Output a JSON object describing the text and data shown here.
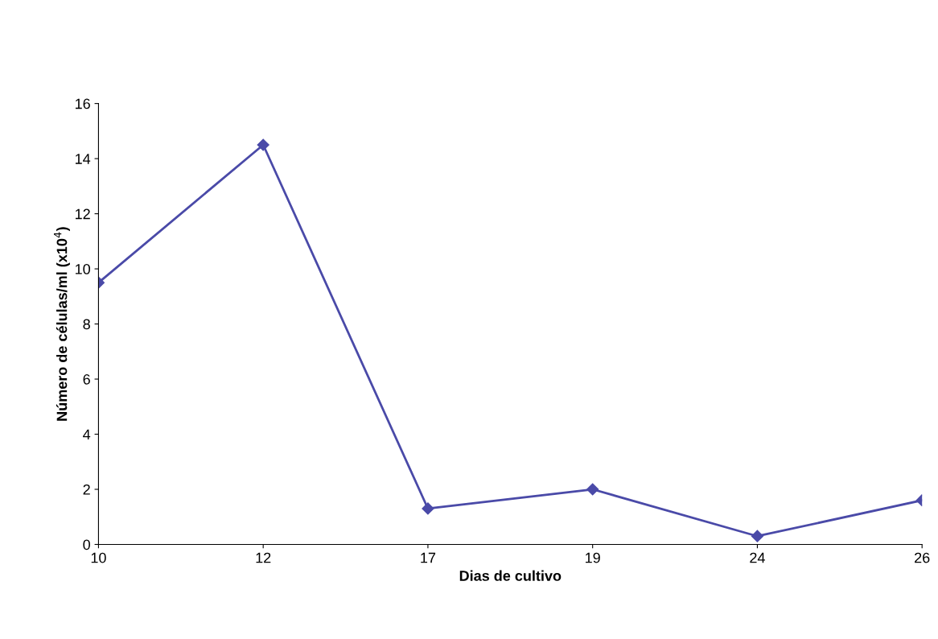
{
  "chart_data": {
    "type": "line",
    "xlabel": "Dias de cultivo",
    "ylabel": "Número de células/ml (x10$^{4}$)",
    "categories": [
      "10",
      "12",
      "17",
      "19",
      "24",
      "26"
    ],
    "series": [
      {
        "color": "#4a4aa8",
        "values": [
          9.5,
          14.5,
          1.3,
          2.0,
          0.3,
          1.6
        ]
      }
    ],
    "ylim": [
      0,
      16
    ],
    "yticks": [
      0,
      2,
      4,
      6,
      8,
      10,
      12,
      14,
      16
    ],
    "grid": false,
    "legend": false,
    "marker": "diamond",
    "line_style": "solid"
  }
}
